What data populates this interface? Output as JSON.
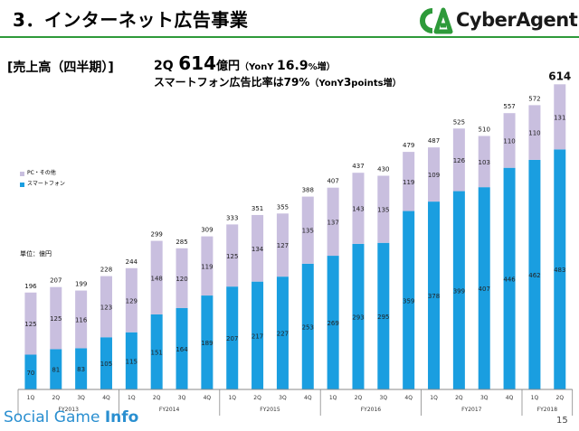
{
  "header": {
    "title": "3．インターネット広告事業",
    "brand": "CyberAgent."
  },
  "section_label": "[売上高（四半期）]",
  "headline": {
    "quarter": "2Q",
    "value": "614",
    "unit": "億円",
    "yoy_prefix": "（YonY ",
    "yoy_value": "16.9",
    "yoy_suffix": "%増）"
  },
  "subline": {
    "text": "スマートフォン広告比率は79%",
    "yoy_a": "（YonY",
    "yoy_value": "3",
    "yoy_b": "points増）"
  },
  "legend": {
    "other_label": "PC・その他",
    "sp_label": "スマートフォン"
  },
  "unit_label": "単位：億円",
  "footer": {
    "watermark_a": "Social Game ",
    "watermark_b": "Info",
    "page": "15"
  },
  "colors": {
    "smartphone": "#1a9ee0",
    "pc_other": "#c9bfdf",
    "accent_green": "#2e9a3a"
  },
  "chart_data": {
    "type": "bar",
    "stacked": true,
    "categories": [
      "1Q",
      "2Q",
      "3Q",
      "4Q",
      "1Q",
      "2Q",
      "3Q",
      "4Q",
      "1Q",
      "2Q",
      "3Q",
      "4Q",
      "1Q",
      "2Q",
      "3Q",
      "4Q",
      "1Q",
      "2Q",
      "3Q",
      "4Q",
      "1Q",
      "2Q"
    ],
    "fiscal_years": [
      {
        "label": "FY2013",
        "span": 4
      },
      {
        "label": "FY2014",
        "span": 4
      },
      {
        "label": "FY2015",
        "span": 4
      },
      {
        "label": "FY2016",
        "span": 4
      },
      {
        "label": "FY2017",
        "span": 4
      },
      {
        "label": "FY2018",
        "span": 2
      }
    ],
    "series": [
      {
        "name": "スマートフォン",
        "values": [
          70,
          81,
          83,
          105,
          115,
          151,
          164,
          189,
          207,
          217,
          227,
          253,
          269,
          293,
          295,
          359,
          378,
          399,
          407,
          446,
          462,
          483
        ]
      },
      {
        "name": "PC・その他",
        "values": [
          125,
          125,
          116,
          123,
          129,
          148,
          120,
          119,
          125,
          134,
          127,
          135,
          137,
          143,
          135,
          119,
          109,
          126,
          103,
          110,
          110,
          131
        ]
      }
    ],
    "totals": [
      196,
      207,
      199,
      228,
      244,
      299,
      285,
      309,
      333,
      351,
      355,
      388,
      407,
      437,
      430,
      479,
      487,
      525,
      510,
      557,
      572,
      614
    ],
    "highlight_last_total": true,
    "ylim": [
      0,
      640
    ],
    "legend_position": "top-left",
    "grid": false
  }
}
